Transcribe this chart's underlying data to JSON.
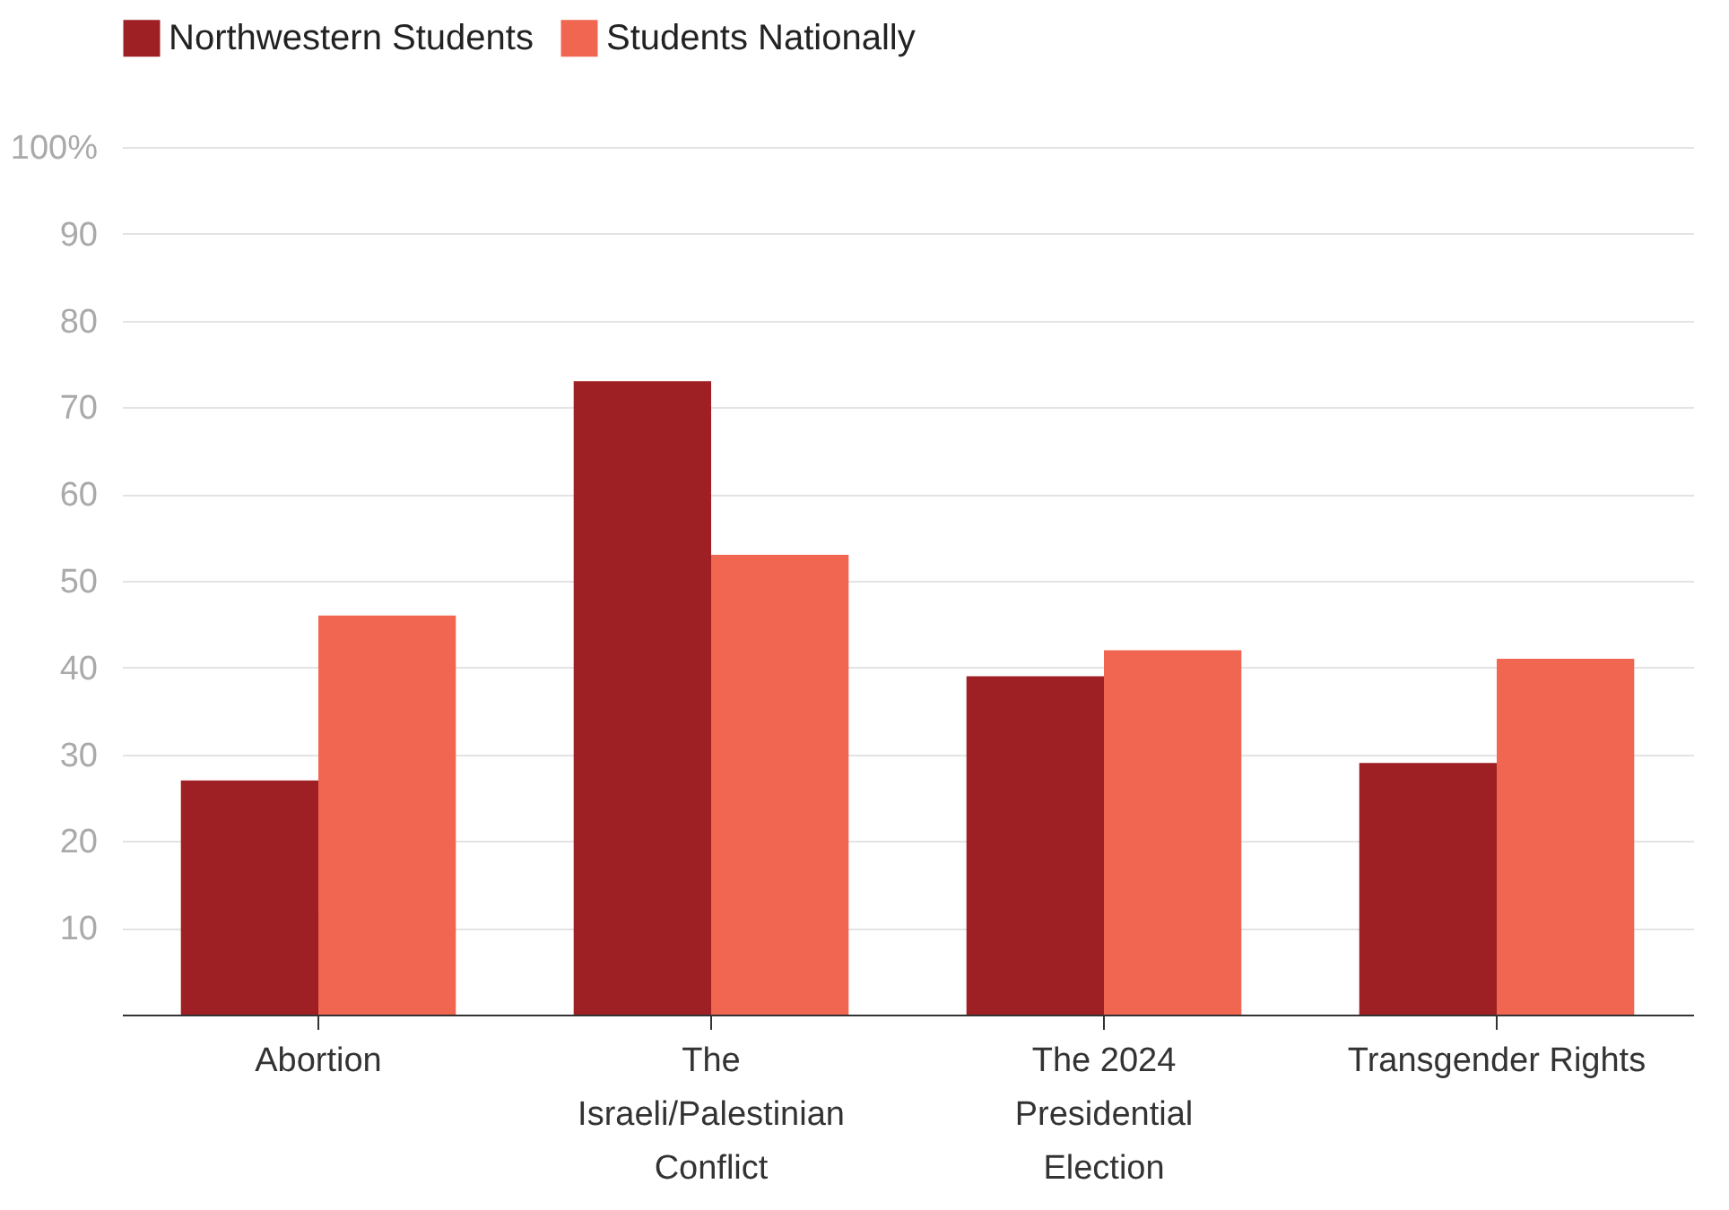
{
  "chart_data": {
    "type": "bar",
    "categories": [
      "Abortion",
      "The\nIsraeli/Palestinian\nConflict",
      "The 2024\nPresidential\nElection",
      "Transgender Rights"
    ],
    "series": [
      {
        "name": "Northwestern Students",
        "color": "#9e1f24",
        "values": [
          27,
          73,
          39,
          29
        ]
      },
      {
        "name": "Students Nationally",
        "color": "#f06650",
        "values": [
          46,
          53,
          42,
          41
        ]
      }
    ],
    "ylim": [
      0,
      100
    ],
    "yticks": [
      10,
      20,
      30,
      40,
      50,
      60,
      70,
      80,
      90,
      {
        "value": 100,
        "label": "100%"
      }
    ],
    "grid": "y",
    "legend": "top left"
  }
}
